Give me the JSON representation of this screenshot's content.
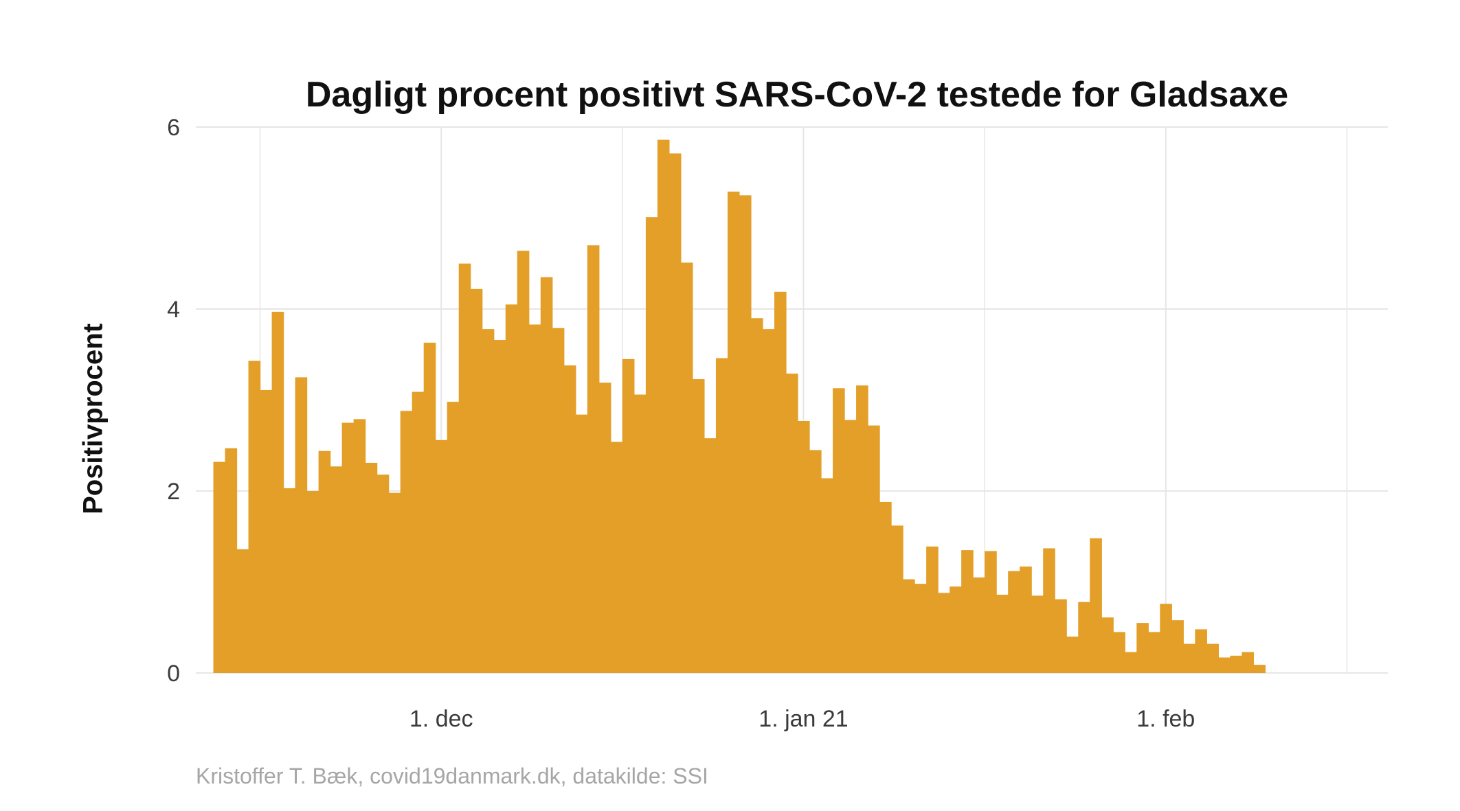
{
  "caption": "Kristoffer T. Bæk, covid19danmark.dk, datakilde: SSI",
  "colors": {
    "bar": "#e39f28",
    "grid": "#e6e6e6"
  },
  "chart_data": {
    "type": "bar",
    "title": "Dagligt procent positivt SARS-CoV-2 testede for Gladsaxe",
    "ylabel": "Positivprocent",
    "xlabel": "",
    "x_start_date": "2020-11-12",
    "xlim": [
      "2020-11-10",
      "2021-02-20"
    ],
    "ylim": [
      0,
      6
    ],
    "y_ticks": [
      0,
      2,
      4,
      6
    ],
    "x_ticks": [
      {
        "date": "2020-12-01",
        "label": "1. dec"
      },
      {
        "date": "2021-01-01",
        "label": "1. jan 21"
      },
      {
        "date": "2021-02-01",
        "label": "1. feb"
      }
    ],
    "grid": true,
    "legend": "none",
    "values": [
      2.32,
      2.47,
      1.36,
      3.43,
      3.11,
      3.97,
      2.03,
      3.25,
      2.0,
      2.44,
      2.27,
      2.75,
      2.79,
      2.31,
      2.18,
      1.98,
      2.88,
      3.09,
      3.63,
      2.56,
      2.98,
      4.5,
      4.22,
      3.78,
      3.66,
      4.05,
      4.64,
      3.83,
      4.35,
      3.79,
      3.38,
      2.84,
      4.7,
      3.19,
      2.54,
      3.45,
      3.06,
      5.01,
      5.86,
      5.71,
      4.51,
      3.23,
      2.58,
      3.46,
      5.29,
      5.25,
      3.9,
      3.78,
      4.19,
      3.29,
      2.77,
      2.45,
      2.14,
      3.13,
      2.78,
      3.16,
      2.72,
      1.88,
      1.62,
      1.03,
      0.98,
      1.39,
      0.88,
      0.95,
      1.35,
      1.05,
      1.34,
      0.86,
      1.12,
      1.17,
      0.85,
      1.37,
      0.81,
      0.4,
      0.78,
      1.48,
      0.61,
      0.45,
      0.23,
      0.55,
      0.45,
      0.76,
      0.58,
      0.32,
      0.48,
      0.32,
      0.17,
      0.19,
      0.23,
      0.09
    ]
  }
}
